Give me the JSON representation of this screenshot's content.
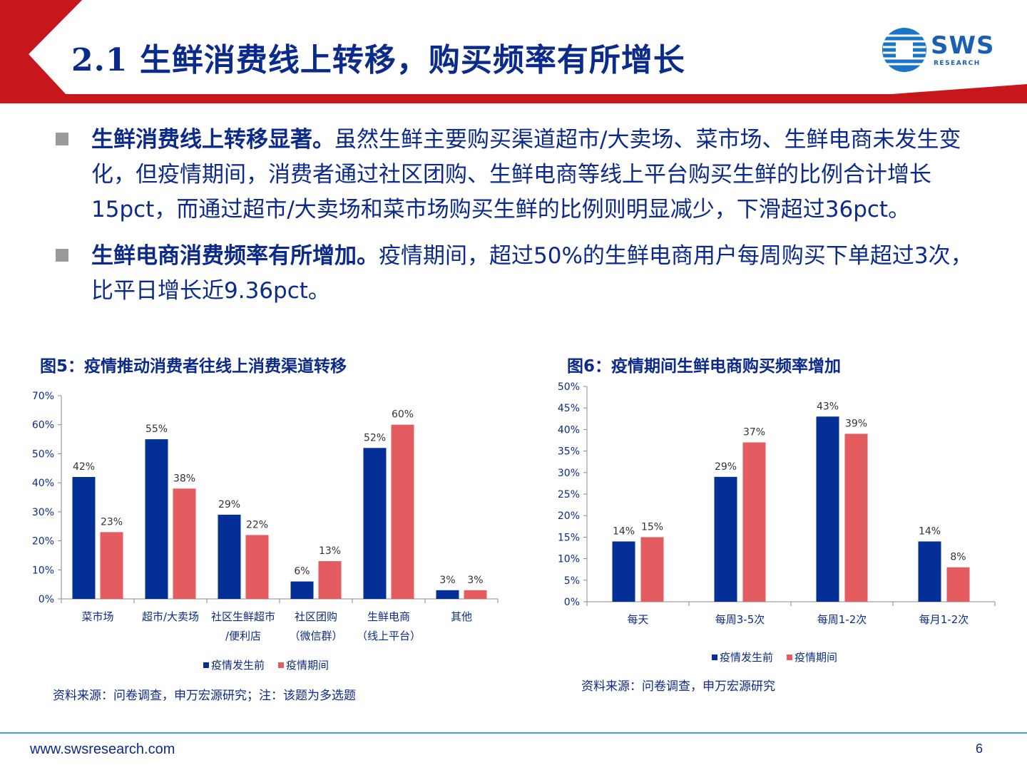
{
  "header": {
    "title": "2.1 生鲜消费线上转移，购买频率有所增长",
    "logo_text": "SWS",
    "logo_sub": "RESEARCH",
    "accent_red": "#c8161d",
    "accent_blue": "#0b2a8a"
  },
  "bullets": [
    {
      "bold": "生鲜消费线上转移显著。",
      "text": "虽然生鲜主要购买渠道超市/大卖场、菜市场、生鲜电商未发生变化，但疫情期间，消费者通过社区团购、生鲜电商等线上平台购买生鲜的比例合计增长15pct，而通过超市/大卖场和菜市场购买生鲜的比例则明显减少，下滑超过36pct。"
    },
    {
      "bold": "生鲜电商消费频率有所增加。",
      "text": "疫情期间，超过50%的生鲜电商用户每周购买下单超过3次，比平日增长近9.36pct。"
    }
  ],
  "figures": [
    {
      "title": "图5：疫情推动消费者往线上消费渠道转移",
      "source": "资料来源：问卷调查，申万宏源研究；注：该题为多选题"
    },
    {
      "title": "图6：疫情期间生鲜电商购买频率增加",
      "source": "资料来源：问卷调查，申万宏源研究"
    }
  ],
  "chart_data": [
    {
      "type": "bar",
      "categories": [
        "菜市场",
        "超市/大卖场",
        "社区生鲜超市\n/便利店",
        "社区团购\n（微信群）",
        "生鲜电商\n（线上平台）",
        "其他"
      ],
      "series": [
        {
          "name": "疫情发生前",
          "values": [
            42,
            55,
            29,
            6,
            52,
            3
          ],
          "color": "#032f97"
        },
        {
          "name": "疫情期间",
          "values": [
            23,
            38,
            22,
            13,
            60,
            3
          ],
          "color": "#e25c60"
        }
      ],
      "data_labels": [
        [
          "42%",
          "55%",
          "29%",
          "6%",
          "52%",
          "3%"
        ],
        [
          "23%",
          "38%",
          "22%",
          "13%",
          "60%",
          "3%"
        ]
      ],
      "ylim": [
        0,
        70
      ],
      "yticks": [
        "0%",
        "10%",
        "20%",
        "30%",
        "40%",
        "50%",
        "60%",
        "70%"
      ],
      "legend": "bottom",
      "grid": false
    },
    {
      "type": "bar",
      "categories": [
        "每天",
        "每周3-5次",
        "每周1-2次",
        "每月1-2次"
      ],
      "series": [
        {
          "name": "疫情发生前",
          "values": [
            14,
            29,
            43,
            14
          ],
          "color": "#032f97"
        },
        {
          "name": "疫情期间",
          "values": [
            15,
            37,
            39,
            8
          ],
          "color": "#e25c60"
        }
      ],
      "data_labels": [
        [
          "14%",
          "29%",
          "43%",
          "14%"
        ],
        [
          "15%",
          "37%",
          "39%",
          "8%"
        ]
      ],
      "ylim": [
        0,
        50
      ],
      "yticks": [
        "0%",
        "5%",
        "10%",
        "15%",
        "20%",
        "25%",
        "30%",
        "35%",
        "40%",
        "45%",
        "50%"
      ],
      "legend": "bottom",
      "grid": false
    }
  ],
  "footer": {
    "url": "www.swsresearch.com",
    "page": "6"
  }
}
